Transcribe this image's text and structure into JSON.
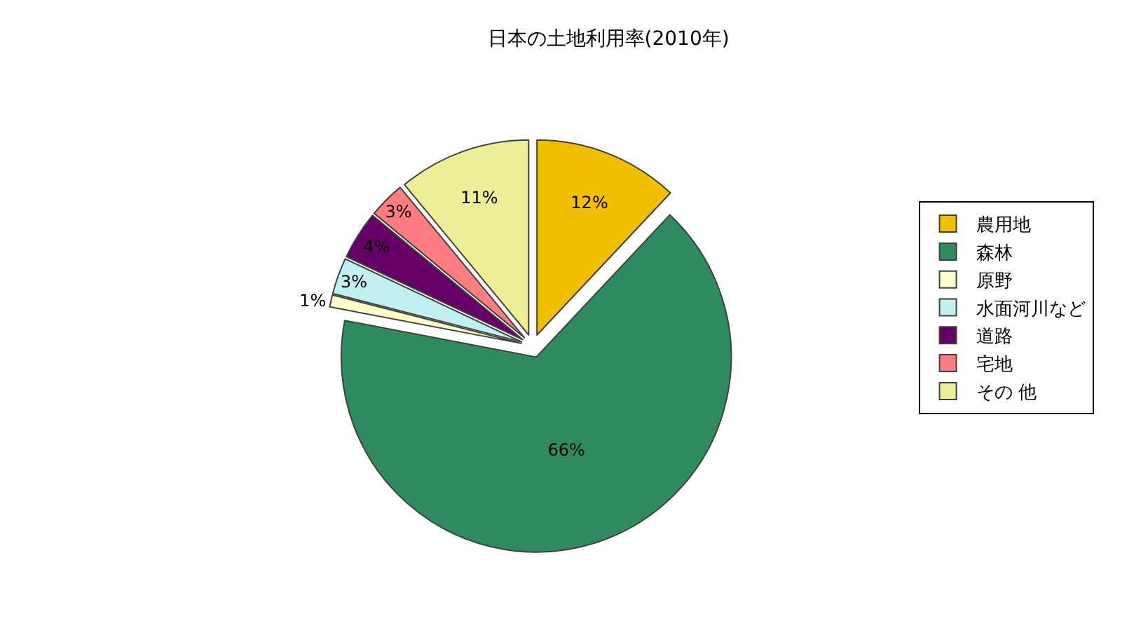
{
  "chart_data": {
    "type": "pie",
    "title": "日本の土地利用率(2010年)",
    "categories": [
      "農用地",
      "森林",
      "原野",
      "水面河川など",
      "道路",
      "宅地",
      "その 他"
    ],
    "values": [
      12,
      66,
      1,
      3,
      4,
      3,
      11
    ],
    "colors": [
      "#f0c000",
      "#2e8b5e",
      "#ffffcc",
      "#c0f0f0",
      "#660066",
      "#ff7c80",
      "#eeee99"
    ],
    "value_labels": [
      "12%",
      "66%",
      "1%",
      "3%",
      "4%",
      "3%",
      "11%"
    ],
    "legend": "right"
  }
}
